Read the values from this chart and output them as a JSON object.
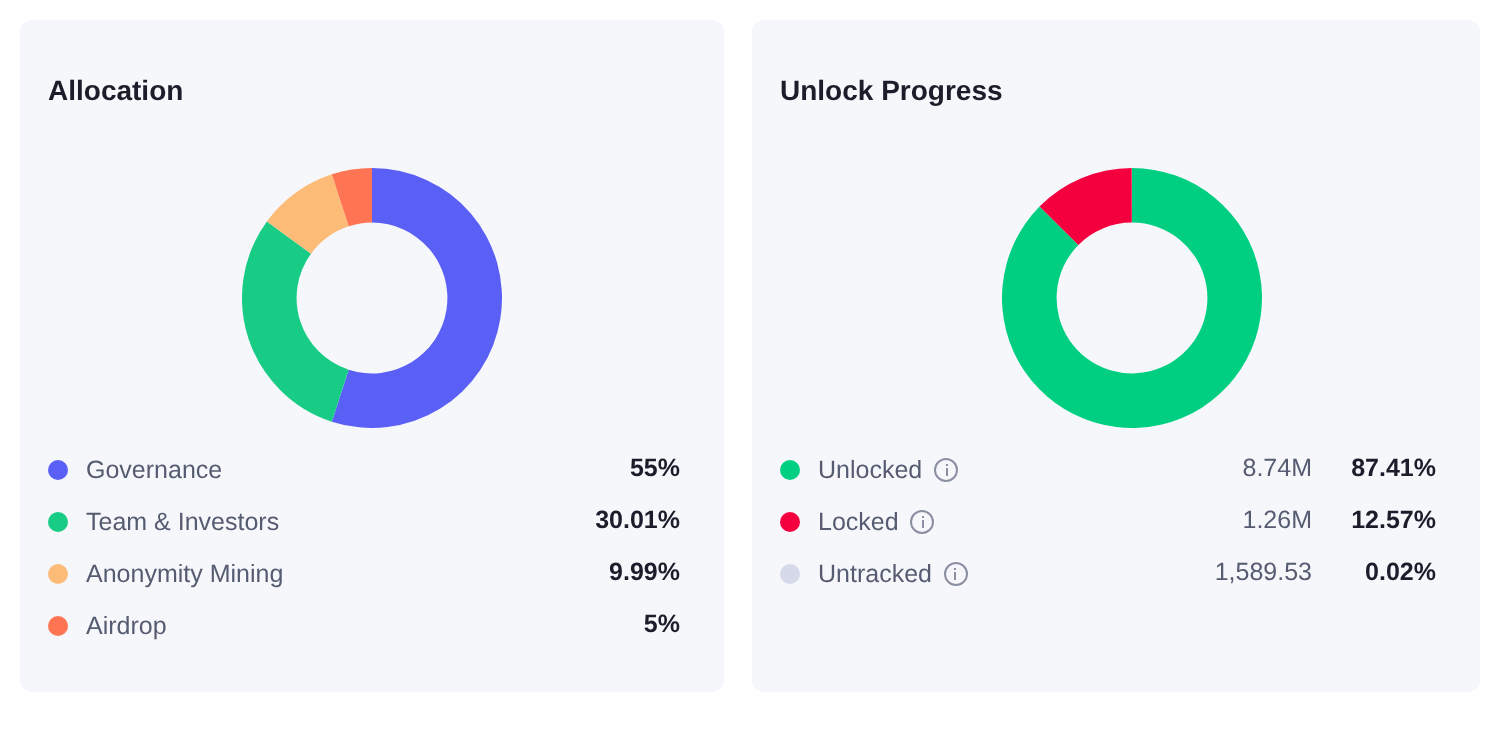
{
  "chart_data": [
    {
      "type": "donut",
      "title": "Allocation",
      "categories": [
        "Governance",
        "Team & Investors",
        "Anonymity Mining",
        "Airdrop"
      ],
      "values": [
        55,
        30.01,
        9.99,
        5
      ],
      "colors": [
        "#5a5ff6",
        "#18cc86",
        "#fdbb78",
        "#ff7452"
      ],
      "value_labels": [
        "55%",
        "30.01%",
        "9.99%",
        "5%"
      ],
      "legend": "bottom"
    },
    {
      "type": "donut",
      "title": "Unlock Progress",
      "categories": [
        "Unlocked",
        "Locked",
        "Untracked"
      ],
      "values": [
        87.41,
        12.57,
        0.02
      ],
      "colors": [
        "#00cf82",
        "#f5003e",
        "#d5d9ea"
      ],
      "value_labels": [
        "87.41%",
        "12.57%",
        "0.02%"
      ],
      "annotations": [
        "8.74M",
        "1.26M",
        "1,589.53"
      ],
      "legend": "bottom"
    }
  ]
}
